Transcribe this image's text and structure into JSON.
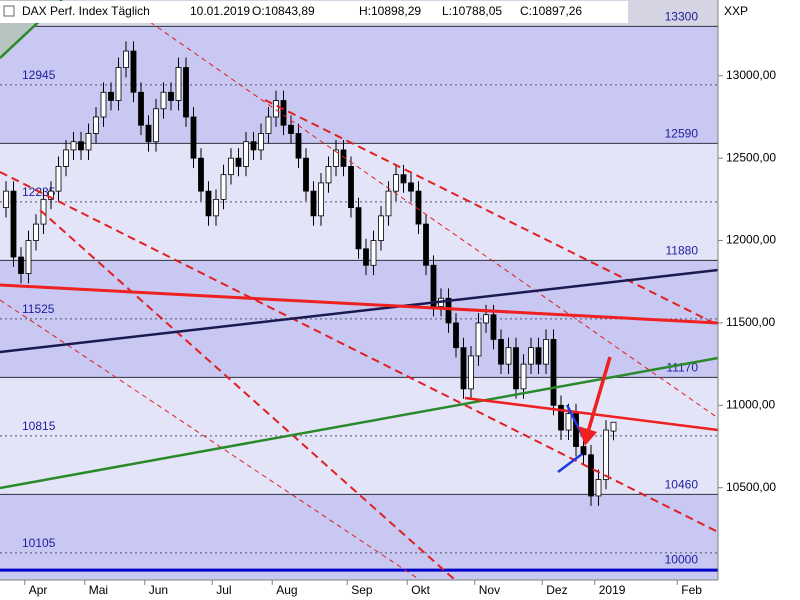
{
  "chart_data": {
    "type": "candlestick",
    "title": "DAX Perf. Index Täglich",
    "date": "10.01.2019",
    "header": {
      "open": "O:10843,89",
      "high": "H:10898,29",
      "low": "L:10788,05",
      "close": "C:10897,26"
    },
    "axis_label": "XXP",
    "categories": [
      null,
      null,
      null,
      "Apr",
      null,
      null,
      null,
      null,
      null,
      null,
      null,
      "Mai",
      null,
      null,
      null,
      null,
      null,
      null,
      null,
      "Jun",
      null,
      null,
      null,
      null,
      null,
      null,
      null,
      null,
      "Jul",
      null,
      null,
      null,
      null,
      null,
      null,
      null,
      "Aug",
      null,
      null,
      null,
      null,
      null,
      null,
      null,
      null,
      null,
      "Sep",
      null,
      null,
      null,
      null,
      null,
      null,
      null,
      "Okt",
      null,
      null,
      null,
      null,
      null,
      null,
      null,
      null,
      "Nov",
      null,
      null,
      null,
      null,
      null,
      null,
      null,
      null,
      "Dez",
      null,
      null,
      null,
      null,
      null,
      null,
      "2019",
      null,
      null,
      null,
      null,
      null,
      null,
      null,
      null,
      null,
      null,
      "Feb"
    ],
    "open": [
      12200,
      12300,
      11900,
      11800,
      12000,
      12100,
      12250,
      12300,
      12450,
      12550,
      12600,
      12550,
      12650,
      12750,
      12900,
      12850,
      13050,
      13150,
      12900,
      12700,
      12600,
      12800,
      12900,
      12850,
      13050,
      12750,
      12500,
      12300,
      12150,
      12250,
      12400,
      12500,
      12450,
      12600,
      12550,
      12650,
      12750,
      12850,
      12700,
      12650,
      12500,
      12300,
      12150,
      12350,
      12450,
      12550,
      12450,
      12200,
      11950,
      11850,
      12000,
      12150,
      12300,
      12400,
      12350,
      12300,
      12100,
      11850,
      11600,
      11650,
      11500,
      11350,
      11100,
      11300,
      11500,
      11550,
      11400,
      11250,
      11350,
      11100,
      11250,
      11350,
      11250,
      11400,
      11000,
      10850,
      10950,
      10750,
      10700,
      10450,
      10550,
      10843.89,
      null,
      null,
      null,
      null,
      null,
      null,
      null,
      null,
      null
    ],
    "high": [
      12360,
      12360,
      11960,
      12060,
      12160,
      12310,
      12360,
      12510,
      12610,
      12660,
      12660,
      12710,
      12810,
      12960,
      12960,
      13110,
      13210,
      13210,
      12960,
      12760,
      12860,
      12960,
      12960,
      13110,
      13110,
      12810,
      12560,
      12360,
      12310,
      12460,
      12560,
      12560,
      12660,
      12660,
      12710,
      12810,
      12910,
      12910,
      12760,
      12710,
      12560,
      12360,
      12410,
      12510,
      12610,
      12610,
      12510,
      12260,
      12010,
      12060,
      12210,
      12360,
      12460,
      12460,
      12410,
      12360,
      12160,
      11910,
      11710,
      11710,
      11560,
      11410,
      11360,
      11560,
      11610,
      11610,
      11460,
      11410,
      11410,
      11310,
      11410,
      11410,
      11460,
      11460,
      11060,
      11010,
      11010,
      10810,
      10760,
      10610,
      10910,
      10898.29,
      null,
      null,
      null,
      null,
      null,
      null,
      null,
      null,
      null
    ],
    "low": [
      12140,
      11840,
      11740,
      11740,
      11940,
      12040,
      12190,
      12240,
      12390,
      12490,
      12490,
      12490,
      12590,
      12690,
      12790,
      12790,
      12990,
      12840,
      12640,
      12540,
      12540,
      12740,
      12790,
      12790,
      12690,
      12440,
      12240,
      12090,
      12090,
      12190,
      12340,
      12390,
      12390,
      12490,
      12490,
      12590,
      12690,
      12640,
      12590,
      12440,
      12240,
      12090,
      12090,
      12290,
      12390,
      12390,
      12140,
      11890,
      11790,
      11790,
      11940,
      12090,
      12240,
      12290,
      12240,
      12040,
      11790,
      11540,
      11540,
      11440,
      11290,
      11040,
      11040,
      11240,
      11440,
      11340,
      11190,
      11190,
      11040,
      11040,
      11190,
      11190,
      11190,
      10940,
      10790,
      10790,
      10690,
      10640,
      10390,
      10390,
      10490,
      10788.05,
      null,
      null,
      null,
      null,
      null,
      null,
      null,
      null,
      null
    ],
    "close": [
      12300,
      11900,
      11800,
      12000,
      12100,
      12250,
      12300,
      12450,
      12550,
      12600,
      12550,
      12650,
      12750,
      12900,
      12850,
      13050,
      13150,
      12900,
      12700,
      12600,
      12800,
      12900,
      12850,
      13050,
      12750,
      12500,
      12300,
      12150,
      12250,
      12400,
      12500,
      12450,
      12600,
      12550,
      12650,
      12750,
      12850,
      12700,
      12650,
      12500,
      12300,
      12150,
      12350,
      12450,
      12550,
      12450,
      12200,
      11950,
      11850,
      12000,
      12150,
      12300,
      12400,
      12350,
      12300,
      12100,
      11850,
      11600,
      11650,
      11500,
      11350,
      11100,
      11300,
      11500,
      11550,
      11400,
      11250,
      11350,
      11100,
      11250,
      11350,
      11250,
      11400,
      11000,
      10850,
      10950,
      10750,
      10700,
      10450,
      10550,
      10850,
      10897.26,
      null,
      null,
      null,
      null,
      null,
      null,
      null,
      null,
      null
    ],
    "ylim": [
      9940,
      13460
    ],
    "yticks": [
      {
        "value": 13000,
        "label": "13000,00"
      },
      {
        "value": 12500,
        "label": "12500,00"
      },
      {
        "value": 12000,
        "label": "12000,00"
      },
      {
        "value": 11500,
        "label": "11500,00"
      },
      {
        "value": 11000,
        "label": "11000,00"
      },
      {
        "value": 10500,
        "label": "10500,00"
      }
    ],
    "levels": [
      13300,
      12945,
      12590,
      12235,
      11880,
      11525,
      11170,
      10815,
      10460,
      10105
    ],
    "baseline": 10000,
    "colors": {
      "up": "#ffffff",
      "down": "#000000",
      "wick": "#000000",
      "open_text": "#e00000",
      "close_text": "#009000",
      "baseline": "#0000cc"
    }
  }
}
